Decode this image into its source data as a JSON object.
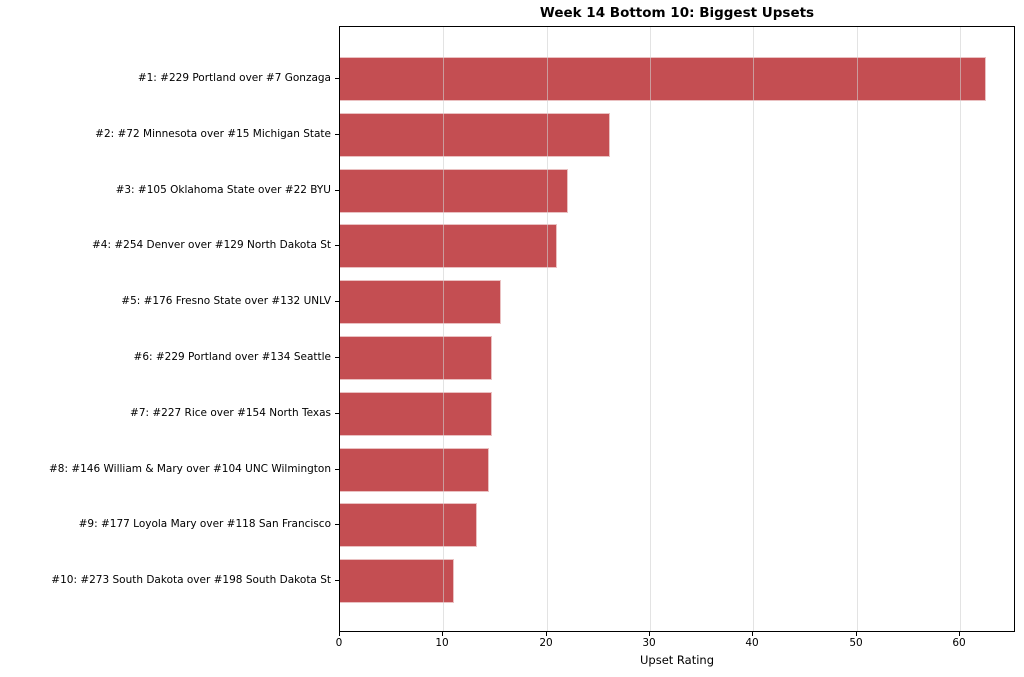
{
  "chart_data": {
    "type": "bar",
    "orientation": "horizontal",
    "title": "Week 14 Bottom 10: Biggest Upsets",
    "xlabel": "Upset Rating",
    "ylabel": "",
    "categories": [
      "#1: #229 Portland over #7 Gonzaga",
      "#2: #72 Minnesota over #15 Michigan State",
      "#3: #105 Oklahoma State over #22 BYU",
      "#4: #254 Denver over #129 North Dakota St",
      "#5: #176 Fresno State over #132 UNLV",
      "#6: #229 Portland over #134 Seattle",
      "#7: #227 Rice over #154 North Texas",
      "#8: #146 William & Mary over #104 UNC Wilmington",
      "#9: #177 Loyola Mary over #118 San Francisco",
      "#10: #273 South Dakota over #198 South Dakota St"
    ],
    "values": [
      62.5,
      26.1,
      22.1,
      21.0,
      15.6,
      14.7,
      14.7,
      14.4,
      13.3,
      11.0
    ],
    "xlim": [
      0,
      65.4
    ],
    "xticks": [
      0,
      10,
      20,
      30,
      40,
      50,
      60
    ],
    "grid": "vertical-gridlines-over-bars",
    "legend": "none",
    "colors": {
      "bar_fill": "#C44E52",
      "bar_edge": "#E9B7B8",
      "gridline": "#d0d0d0",
      "spine": "#000000",
      "text": "#000000",
      "background": "#ffffff"
    }
  }
}
